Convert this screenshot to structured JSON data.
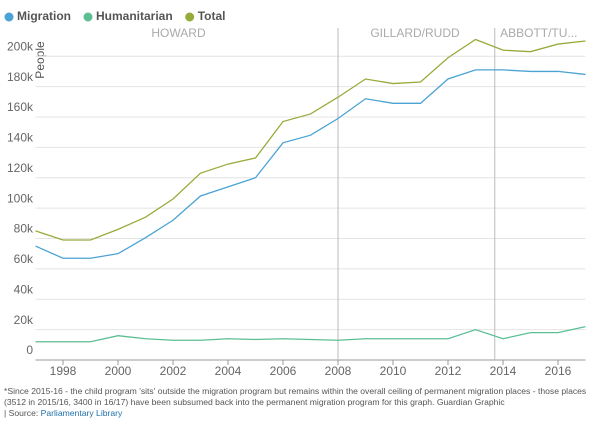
{
  "chart_data": {
    "type": "line",
    "y_label": "People",
    "x": [
      1997,
      1998,
      1999,
      2000,
      2001,
      2002,
      2003,
      2004,
      2005,
      2006,
      2007,
      2008,
      2009,
      2010,
      2011,
      2012,
      2013,
      2014,
      2015,
      2016,
      2017
    ],
    "series": [
      {
        "name": "Migration",
        "color": "#4ba3d3",
        "values": [
          75000,
          67000,
          67000,
          70000,
          80500,
          92000,
          108000,
          114000,
          120000,
          143000,
          148000,
          159000,
          172000,
          169000,
          169000,
          185000,
          191000,
          191000,
          190000,
          190000,
          188000
        ]
      },
      {
        "name": "Humanitarian",
        "color": "#5cbf94",
        "values": [
          12000,
          12000,
          12000,
          16000,
          14000,
          13000,
          13000,
          14000,
          13500,
          14000,
          13500,
          13000,
          14000,
          14000,
          14000,
          14000,
          20000,
          14000,
          18000,
          18000,
          22000
        ]
      },
      {
        "name": "Total",
        "color": "#95ac3c",
        "values": [
          85000,
          79000,
          79000,
          86000,
          94000,
          106000,
          123000,
          129000,
          133000,
          157000,
          162000,
          173000,
          185000,
          182000,
          183000,
          199000,
          211000,
          204000,
          203000,
          208000,
          210000
        ]
      }
    ],
    "xlim": [
      1997,
      2017
    ],
    "xticks": [
      1998,
      2000,
      2002,
      2004,
      2006,
      2008,
      2010,
      2012,
      2014,
      2016
    ],
    "ylim": [
      0,
      212000
    ],
    "yticks": [
      {
        "value": 0,
        "label": "0"
      },
      {
        "value": 20000,
        "label": "20k"
      },
      {
        "value": 40000,
        "label": "40k"
      },
      {
        "value": 60000,
        "label": "60k"
      },
      {
        "value": 80000,
        "label": "80k"
      },
      {
        "value": 100000,
        "label": "100k"
      },
      {
        "value": 120000,
        "label": "120k"
      },
      {
        "value": 140000,
        "label": "140k"
      },
      {
        "value": 160000,
        "label": "160k"
      },
      {
        "value": 180000,
        "label": "180k"
      },
      {
        "value": 200000,
        "label": "200k"
      }
    ],
    "grid": true,
    "dividers": [
      2008,
      2013.7
    ],
    "annotations": [
      {
        "text": "HOWARD",
        "x": 2002.2
      },
      {
        "text": "GILLARD/RUDD",
        "x": 2010.8
      },
      {
        "text": "ABBOTT/TU...",
        "x": 2015.3
      }
    ]
  },
  "footnote": {
    "lines": [
      "*Since 2015-16 - the child program 'sits' outside the migration program but remains within the overall ceiling of permanent migration places - those places (3512 in 2015/16, 3400 in 16/17) have been subsumed back into the permanent migration program for this graph. Guardian Graphic"
    ],
    "source_prefix": "| Source:",
    "source_link": "Parliamentary Library"
  }
}
